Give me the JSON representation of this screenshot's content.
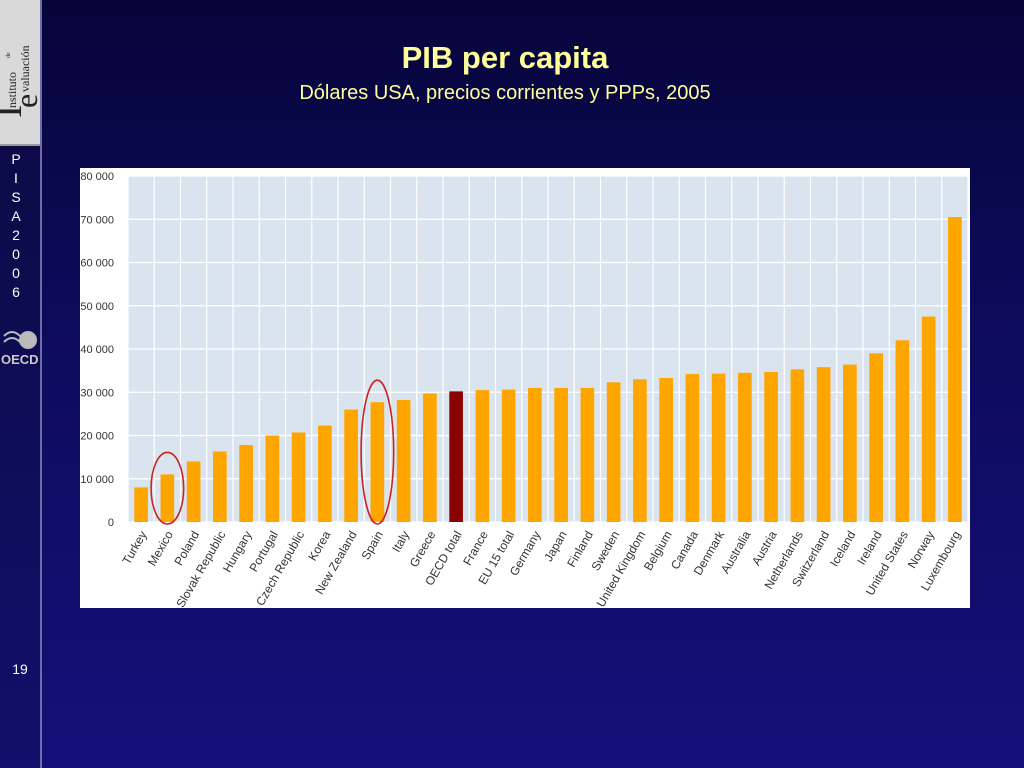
{
  "sidebar": {
    "logo_text": [
      "Instituto",
      "de",
      "Evaluación"
    ],
    "pisa_letters": [
      "P",
      "I",
      "S",
      "A",
      "",
      "2",
      "0",
      "0",
      "6"
    ],
    "oecd_label": "OECD",
    "page_number": "19"
  },
  "slide": {
    "title": "PIB per capita",
    "subtitle": "Dólares USA, precios corrientes y PPPs, 2005"
  },
  "colors": {
    "bar": "#ffa500",
    "highlight_bar": "#8b0000",
    "circle": "#cc2222",
    "plot_bg": "#d9e4ee",
    "title": "#ffff99"
  },
  "chart_data": {
    "type": "bar",
    "title": "",
    "xlabel": "",
    "ylabel": "",
    "ylim": [
      0,
      80000
    ],
    "yticks": [
      0,
      10000,
      20000,
      30000,
      40000,
      50000,
      60000,
      70000,
      80000
    ],
    "ytick_labels": [
      "0",
      "10 000",
      "20 000",
      "30 000",
      "40 000",
      "50 000",
      "60 000",
      "70 000",
      "80 000"
    ],
    "grid": true,
    "categories": [
      "Turkey",
      "Mexico",
      "Poland",
      "Slovak Republic",
      "Hungary",
      "Portugal",
      "Czech Republic",
      "Korea",
      "New Zealand",
      "Spain",
      "Italy",
      "Greece",
      "OECD total",
      "France",
      "EU 15 total",
      "Germany",
      "Japan",
      "Finland",
      "Sweden",
      "United Kingdom",
      "Belgium",
      "Canada",
      "Denmark",
      "Australia",
      "Austria",
      "Netherlands",
      "Switzerland",
      "Iceland",
      "Ireland",
      "United States",
      "Norway",
      "Luxembourg"
    ],
    "values": [
      8000,
      11000,
      14000,
      16300,
      17800,
      20000,
      20700,
      22300,
      26000,
      27700,
      28200,
      29700,
      30200,
      30500,
      30600,
      31000,
      31000,
      31000,
      32300,
      33000,
      33300,
      34200,
      34300,
      34500,
      34700,
      35300,
      35800,
      36400,
      39000,
      42000,
      47500,
      70500
    ],
    "highlighted": [
      "OECD total"
    ],
    "circled": [
      "Mexico",
      "Spain"
    ]
  }
}
